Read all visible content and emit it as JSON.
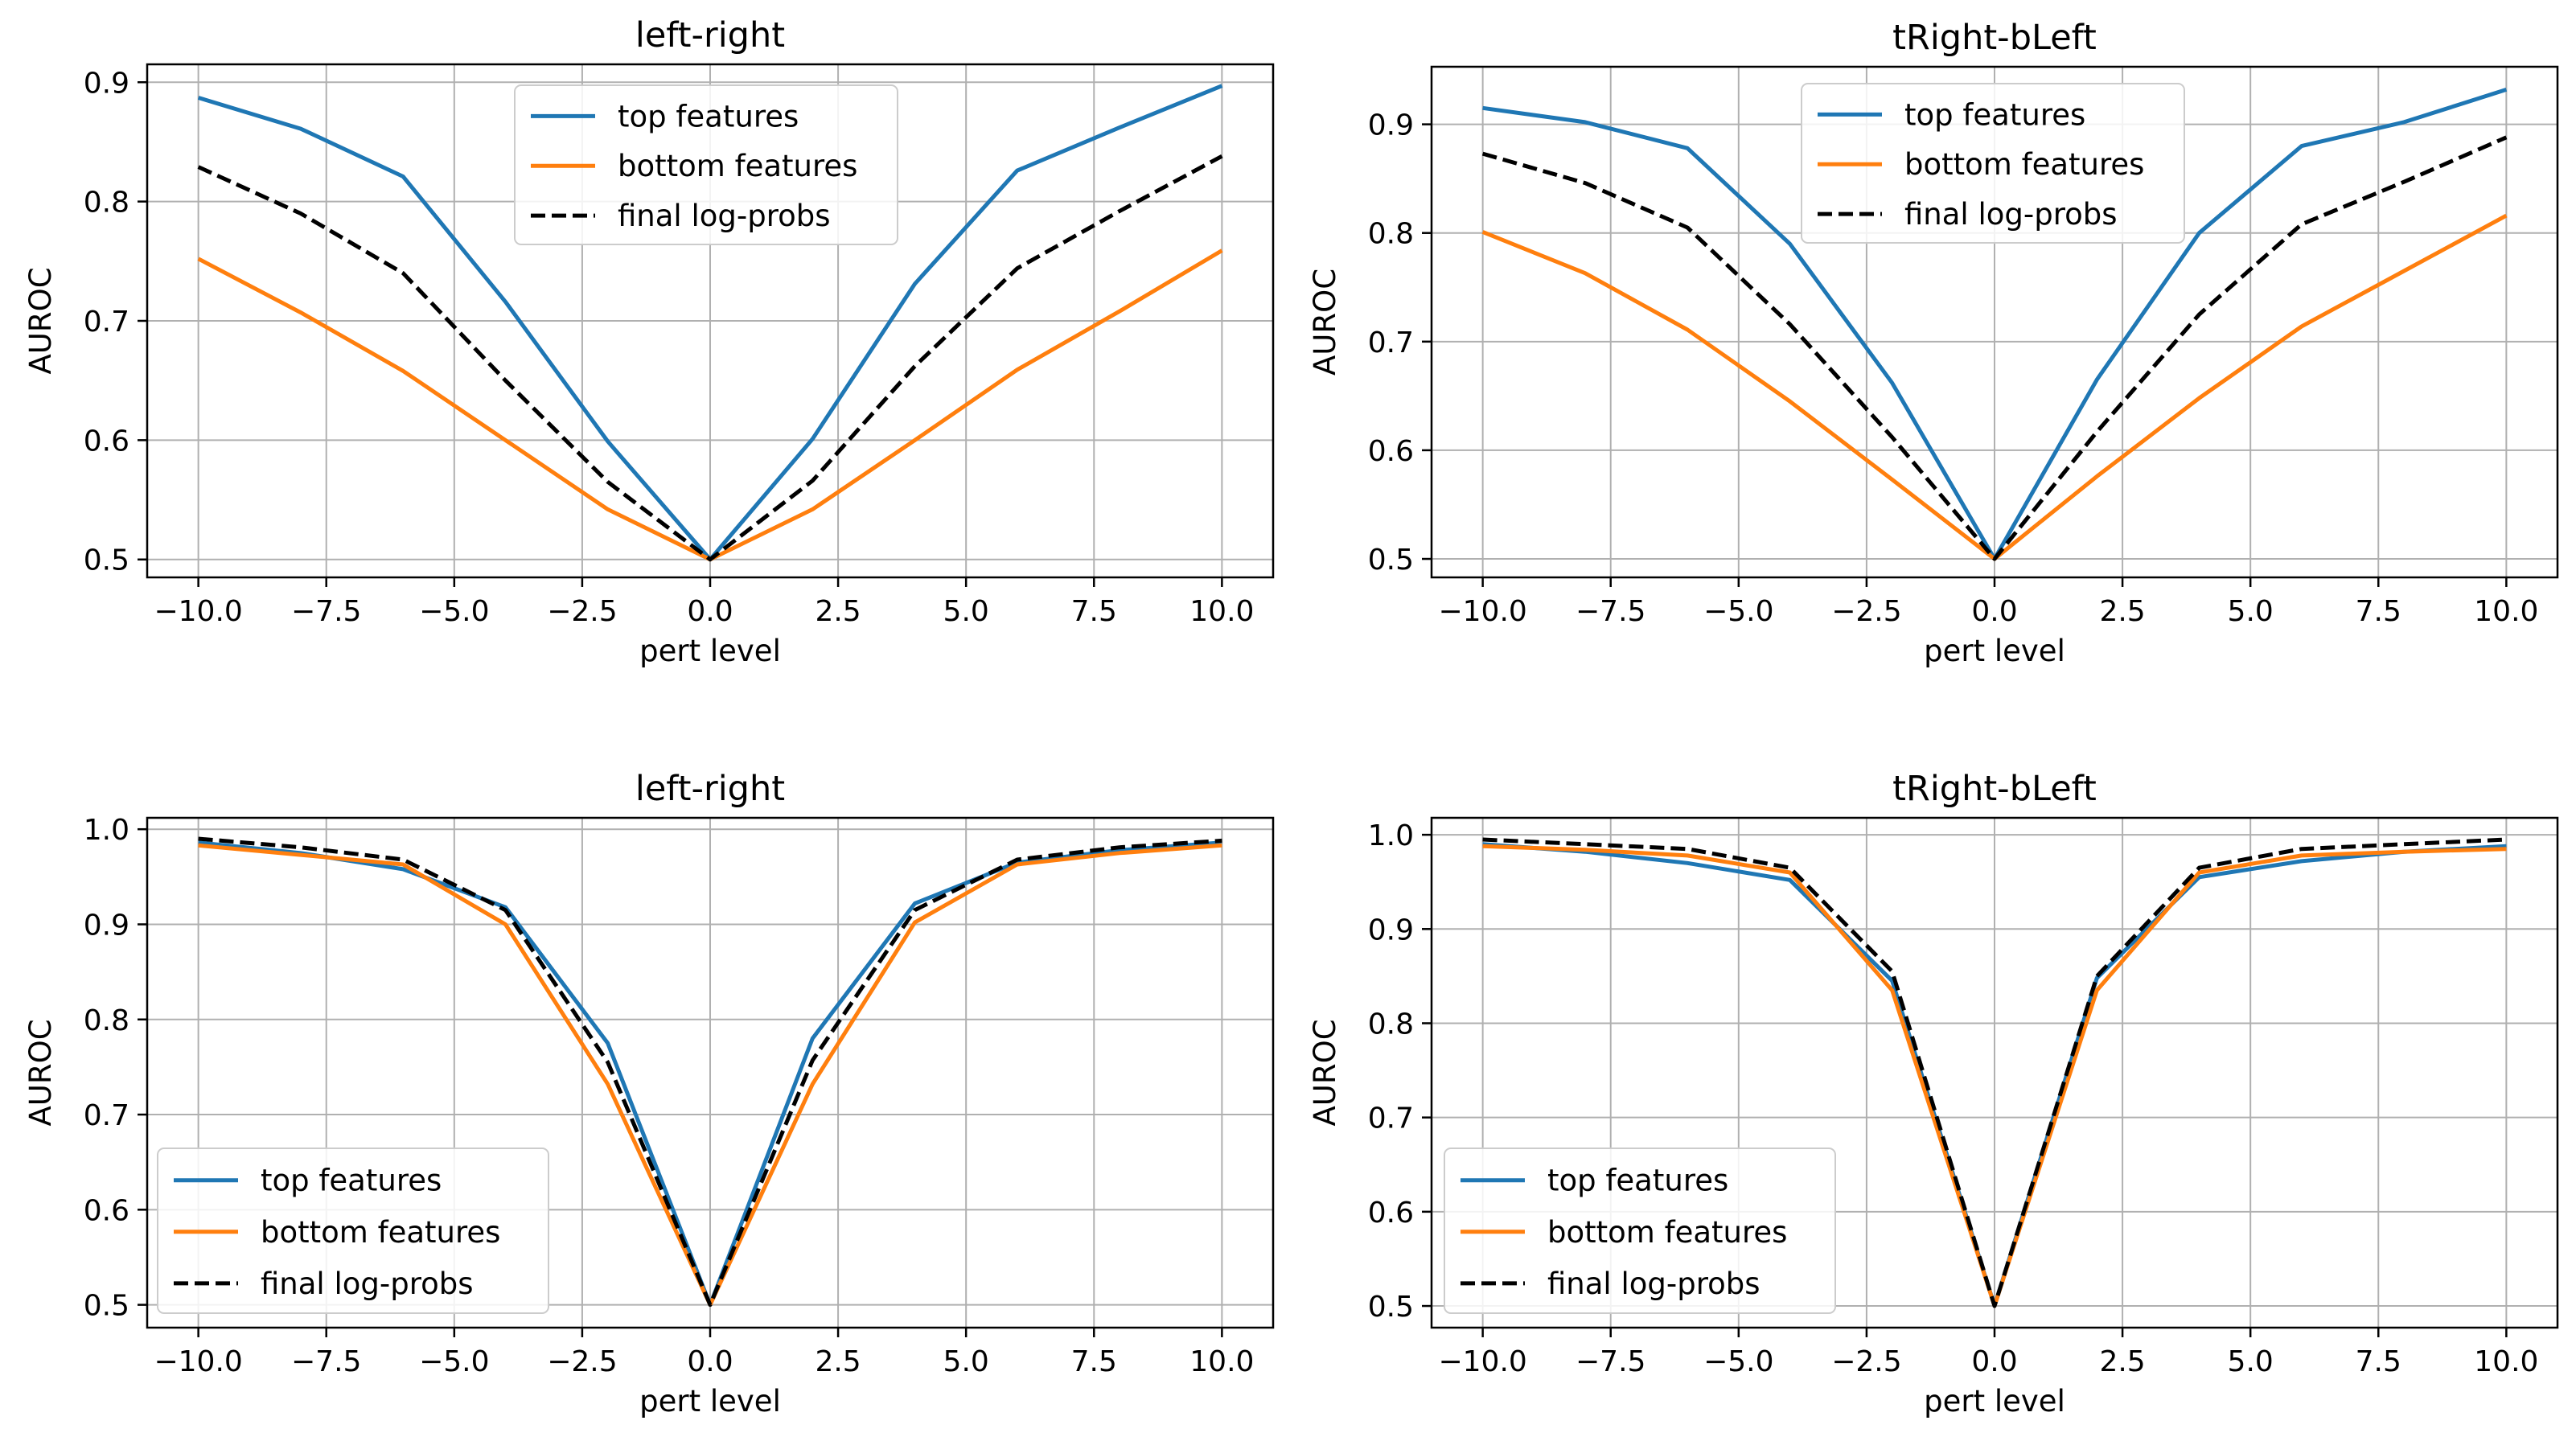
{
  "chart_data": [
    {
      "type": "line",
      "title": "left-right",
      "xlabel": "pert level",
      "ylabel": "AUROC",
      "x": [
        -10,
        -8,
        -6,
        -4,
        -2,
        0,
        2,
        4,
        6,
        8,
        10
      ],
      "xlim": [
        -11,
        11
      ],
      "ylim": [
        0.485,
        0.915
      ],
      "xticks": [
        -10,
        -7.5,
        -5,
        -2.5,
        0,
        2.5,
        5,
        7.5,
        10
      ],
      "xtick_labels": [
        "−10.0",
        "−7.5",
        "−5.0",
        "−2.5",
        "0.0",
        "2.5",
        "5.0",
        "7.5",
        "10.0"
      ],
      "yticks": [
        0.5,
        0.6,
        0.7,
        0.8,
        0.9
      ],
      "ytick_labels": [
        "0.5",
        "0.6",
        "0.7",
        "0.8",
        "0.9"
      ],
      "grid": true,
      "legend_position": "top-center",
      "series": [
        {
          "name": "top features",
          "color": "#1f77b4",
          "dash": "solid",
          "values": [
            0.887,
            0.861,
            0.821,
            0.716,
            0.599,
            0.5,
            0.601,
            0.731,
            0.826,
            0.862,
            0.897
          ]
        },
        {
          "name": "bottom features",
          "color": "#ff7f0e",
          "dash": "solid",
          "values": [
            0.752,
            0.707,
            0.658,
            0.6,
            0.542,
            0.5,
            0.542,
            0.6,
            0.659,
            0.708,
            0.759
          ]
        },
        {
          "name": "final log-probs",
          "color": "#000000",
          "dash": "dashed",
          "values": [
            0.829,
            0.79,
            0.74,
            0.65,
            0.565,
            0.5,
            0.566,
            0.662,
            0.744,
            0.792,
            0.838
          ]
        }
      ]
    },
    {
      "type": "line",
      "title": "tRight-bLeft",
      "xlabel": "pert level",
      "ylabel": "AUROC",
      "x": [
        -10,
        -8,
        -6,
        -4,
        -2,
        0,
        2,
        4,
        6,
        8,
        10
      ],
      "xlim": [
        -11,
        11
      ],
      "ylim": [
        0.483,
        0.953
      ],
      "xticks": [
        -10,
        -7.5,
        -5,
        -2.5,
        0,
        2.5,
        5,
        7.5,
        10
      ],
      "xtick_labels": [
        "−10.0",
        "−7.5",
        "−5.0",
        "−2.5",
        "0.0",
        "2.5",
        "5.0",
        "7.5",
        "10.0"
      ],
      "yticks": [
        0.5,
        0.6,
        0.7,
        0.8,
        0.9
      ],
      "ytick_labels": [
        "0.5",
        "0.6",
        "0.7",
        "0.8",
        "0.9"
      ],
      "grid": true,
      "legend_position": "top-center",
      "series": [
        {
          "name": "top features",
          "color": "#1f77b4",
          "dash": "solid",
          "values": [
            0.915,
            0.902,
            0.878,
            0.79,
            0.662,
            0.5,
            0.665,
            0.8,
            0.88,
            0.902,
            0.932
          ]
        },
        {
          "name": "bottom features",
          "color": "#ff7f0e",
          "dash": "solid",
          "values": [
            0.801,
            0.763,
            0.711,
            0.645,
            0.573,
            0.5,
            0.576,
            0.648,
            0.714,
            0.765,
            0.816
          ]
        },
        {
          "name": "final log-probs",
          "color": "#000000",
          "dash": "dashed",
          "values": [
            0.873,
            0.846,
            0.805,
            0.716,
            0.612,
            0.5,
            0.617,
            0.725,
            0.808,
            0.847,
            0.888
          ]
        }
      ]
    },
    {
      "type": "line",
      "title": "left-right",
      "xlabel": "pert level",
      "ylabel": "AUROC",
      "x": [
        -10,
        -8,
        -6,
        -4,
        -2,
        0,
        2,
        4,
        6,
        8,
        10
      ],
      "xlim": [
        -11,
        11
      ],
      "ylim": [
        0.476,
        1.012
      ],
      "xticks": [
        -10,
        -7.5,
        -5,
        -2.5,
        0,
        2.5,
        5,
        7.5,
        10
      ],
      "xtick_labels": [
        "−10.0",
        "−7.5",
        "−5.0",
        "−2.5",
        "0.0",
        "2.5",
        "5.0",
        "7.5",
        "10.0"
      ],
      "yticks": [
        0.5,
        0.6,
        0.7,
        0.8,
        0.9,
        1.0
      ],
      "ytick_labels": [
        "0.5",
        "0.6",
        "0.7",
        "0.8",
        "0.9",
        "1.0"
      ],
      "grid": true,
      "legend_position": "lower-left",
      "series": [
        {
          "name": "top features",
          "color": "#1f77b4",
          "dash": "solid",
          "values": [
            0.986,
            0.975,
            0.958,
            0.918,
            0.775,
            0.5,
            0.78,
            0.922,
            0.965,
            0.978,
            0.986
          ]
        },
        {
          "name": "bottom features",
          "color": "#ff7f0e",
          "dash": "solid",
          "values": [
            0.983,
            0.973,
            0.963,
            0.9,
            0.732,
            0.5,
            0.732,
            0.902,
            0.963,
            0.975,
            0.983
          ]
        },
        {
          "name": "final log-probs",
          "color": "#000000",
          "dash": "dashed",
          "values": [
            0.99,
            0.981,
            0.968,
            0.915,
            0.755,
            0.5,
            0.757,
            0.915,
            0.968,
            0.981,
            0.988
          ]
        }
      ]
    },
    {
      "type": "line",
      "title": "tRight-bLeft",
      "xlabel": "pert level",
      "ylabel": "AUROC",
      "x": [
        -10,
        -8,
        -6,
        -4,
        -2,
        0,
        2,
        4,
        6,
        8,
        10
      ],
      "xlim": [
        -11,
        11
      ],
      "ylim": [
        0.477,
        1.018
      ],
      "xticks": [
        -10,
        -7.5,
        -5,
        -2.5,
        0,
        2.5,
        5,
        7.5,
        10
      ],
      "xtick_labels": [
        "−10.0",
        "−7.5",
        "−5.0",
        "−2.5",
        "0.0",
        "2.5",
        "5.0",
        "7.5",
        "10.0"
      ],
      "yticks": [
        0.5,
        0.6,
        0.7,
        0.8,
        0.9,
        1.0
      ],
      "ytick_labels": [
        "0.5",
        "0.6",
        "0.7",
        "0.8",
        "0.9",
        "1.0"
      ],
      "grid": true,
      "legend_position": "lower-left",
      "series": [
        {
          "name": "top features",
          "color": "#1f77b4",
          "dash": "solid",
          "values": [
            0.99,
            0.982,
            0.97,
            0.952,
            0.845,
            0.5,
            0.848,
            0.955,
            0.972,
            0.982,
            0.988
          ]
        },
        {
          "name": "bottom features",
          "color": "#ff7f0e",
          "dash": "solid",
          "values": [
            0.988,
            0.984,
            0.978,
            0.96,
            0.835,
            0.5,
            0.835,
            0.96,
            0.978,
            0.982,
            0.985
          ]
        },
        {
          "name": "final log-probs",
          "color": "#000000",
          "dash": "dashed",
          "values": [
            0.995,
            0.99,
            0.985,
            0.965,
            0.855,
            0.5,
            0.85,
            0.965,
            0.985,
            0.99,
            0.995
          ]
        }
      ]
    }
  ]
}
